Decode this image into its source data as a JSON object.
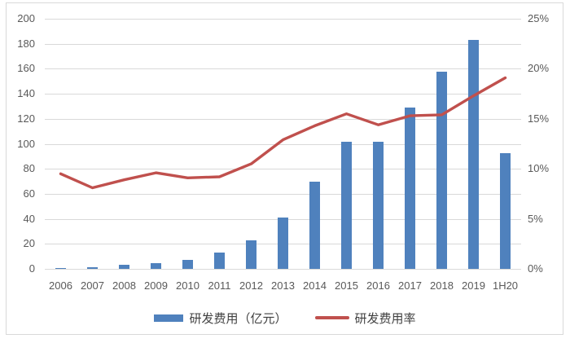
{
  "colors": {
    "bar": "#4F81BD",
    "line": "#C0504D",
    "grid": "#D9D9D9",
    "frame_border": "#D9D9D9",
    "tick_text": "#595959",
    "legend_text": "#404040",
    "background": "#FFFFFF"
  },
  "chart_data": {
    "type": "bar",
    "subtype": "bar-line-combo",
    "categories": [
      "2006",
      "2007",
      "2008",
      "2009",
      "2010",
      "2011",
      "2012",
      "2013",
      "2014",
      "2015",
      "2016",
      "2017",
      "2018",
      "2019",
      "1H20"
    ],
    "series": [
      {
        "name": "研发费用（亿元）",
        "type": "bar",
        "axis": "left",
        "color": "#4F81BD",
        "values": [
          0.7,
          1.6,
          3.1,
          4.6,
          7.0,
          13.3,
          23.1,
          41.2,
          69.8,
          101.8,
          101.5,
          129.2,
          157.9,
          183.3,
          92.7
        ]
      },
      {
        "name": "研发费用率",
        "type": "line",
        "axis": "right",
        "color": "#C0504D",
        "values": [
          9.5,
          8.1,
          8.9,
          9.6,
          9.1,
          9.2,
          10.5,
          12.9,
          14.3,
          15.5,
          14.4,
          15.3,
          15.4,
          17.3,
          19.1
        ],
        "unit": "%"
      }
    ],
    "left_axis": {
      "min": 0,
      "max": 200,
      "step": 20,
      "tick_labels": [
        "0",
        "20",
        "40",
        "60",
        "80",
        "100",
        "120",
        "140",
        "160",
        "180",
        "200"
      ]
    },
    "right_axis": {
      "min": 0,
      "max": 25,
      "step": 5,
      "tick_labels": [
        "0%",
        "5%",
        "10%",
        "15%",
        "20%",
        "25%"
      ]
    },
    "title": "",
    "xlabel": "",
    "ylabel": "",
    "grid": true,
    "legend_position": "bottom"
  }
}
